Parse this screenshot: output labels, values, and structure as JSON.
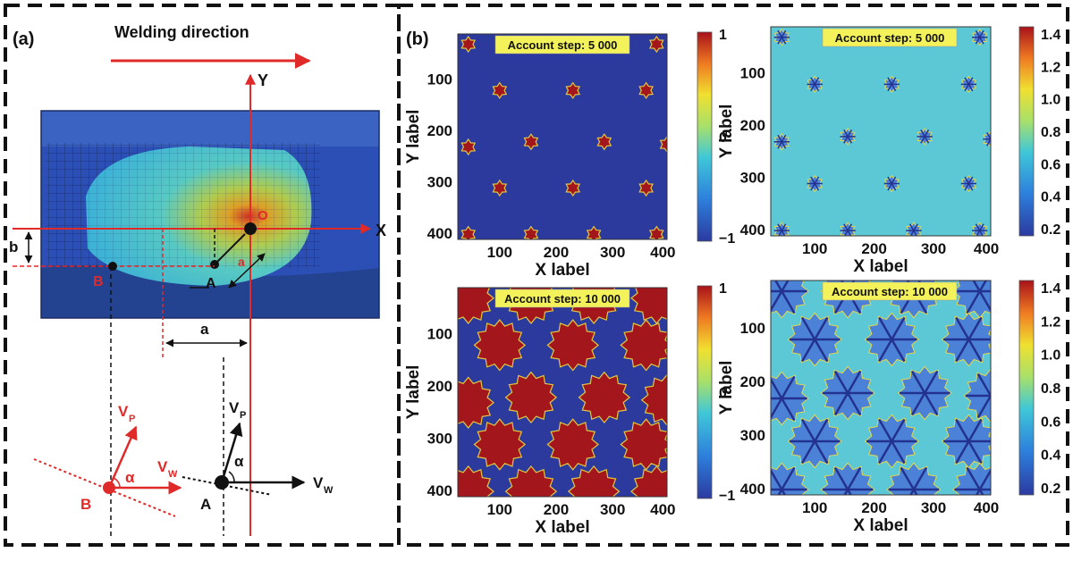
{
  "panel_a": {
    "label": "(a)",
    "welding_direction": "Welding direction",
    "axis_y": "Y",
    "axis_x": "X",
    "dim_a": "a",
    "dim_b": "b",
    "point_o": "O",
    "point_a": "A",
    "point_b": "B",
    "vec_vp": "V",
    "vec_vp_sub": "P",
    "vec_vw": "V",
    "vec_vw_sub": "W",
    "angle": "α",
    "colors": {
      "red": "#e02a2a",
      "black": "#111111",
      "mesh_blue": "#2b4fb5"
    }
  },
  "panel_b": {
    "label": "(b)",
    "plots": [
      {
        "step_label": "Account step: 5 000",
        "xlabel": "X label",
        "ylabel": "Y label",
        "yticks": [
          "100",
          "200",
          "300",
          "400"
        ],
        "xticks": [
          "100",
          "200",
          "300",
          "400"
        ],
        "colorbar_ticks": [
          "1",
          "0",
          "−1"
        ]
      },
      {
        "step_label": "Account step: 5 000",
        "xlabel": "X label",
        "ylabel": "Y label",
        "yticks": [
          "100",
          "200",
          "300",
          "400"
        ],
        "xticks": [
          "100",
          "200",
          "300",
          "400"
        ],
        "colorbar_ticks": [
          "1.4",
          "1.2",
          "1.0",
          "0.8",
          "0.6",
          "0.4",
          "0.2"
        ]
      },
      {
        "step_label": "Account step: 10 000",
        "xlabel": "X label",
        "ylabel": "Y label",
        "yticks": [
          "100",
          "200",
          "300",
          "400"
        ],
        "xticks": [
          "100",
          "200",
          "300",
          "400"
        ],
        "colorbar_ticks": [
          "1",
          "0",
          "−1"
        ]
      },
      {
        "step_label": "Account step: 10 000",
        "xlabel": "X label",
        "ylabel": "Y label",
        "yticks": [
          "100",
          "200",
          "300",
          "400"
        ],
        "xticks": [
          "100",
          "200",
          "300",
          "400"
        ],
        "colorbar_ticks": [
          "1.4",
          "1.2",
          "1.0",
          "0.8",
          "0.6",
          "0.4",
          "0.2"
        ]
      }
    ]
  }
}
